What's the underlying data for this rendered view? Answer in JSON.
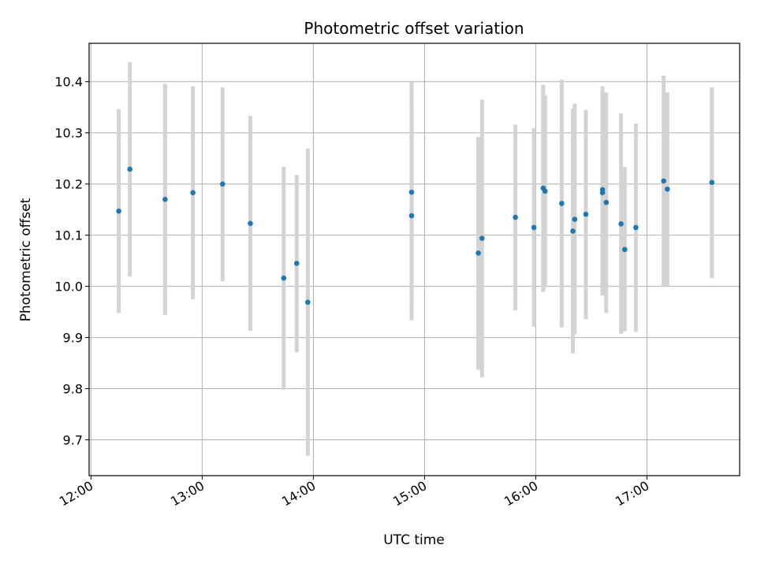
{
  "chart_data": {
    "type": "scatter",
    "title": "Photometric offset variation",
    "xlabel": "UTC time",
    "ylabel": "Photometric offset",
    "x_ticks": [
      "12:00",
      "13:00",
      "14:00",
      "15:00",
      "16:00",
      "17:00"
    ],
    "y_ticks": [
      "9.7",
      "9.8",
      "9.9",
      "10.0",
      "10.1",
      "10.2",
      "10.3",
      "10.4"
    ],
    "xlim": [
      "11:59",
      "17:50"
    ],
    "ylim": [
      9.63,
      10.475
    ],
    "grid": true,
    "colors": {
      "point": "#1f77b4",
      "errorbar": "#d3d3d3",
      "grid": "#b0b0b0"
    },
    "points": [
      {
        "x": "12:15",
        "y": 10.147,
        "low": 9.948,
        "high": 10.346
      },
      {
        "x": "12:21",
        "y": 10.229,
        "low": 10.019,
        "high": 10.438
      },
      {
        "x": "12:40",
        "y": 10.17,
        "low": 9.944,
        "high": 10.396
      },
      {
        "x": "12:55",
        "y": 10.183,
        "low": 9.975,
        "high": 10.391
      },
      {
        "x": "13:11",
        "y": 10.2,
        "low": 10.01,
        "high": 10.389
      },
      {
        "x": "13:26",
        "y": 10.123,
        "low": 9.913,
        "high": 10.333
      },
      {
        "x": "13:44",
        "y": 10.016,
        "low": 9.798,
        "high": 10.234
      },
      {
        "x": "13:51",
        "y": 10.045,
        "low": 9.871,
        "high": 10.218
      },
      {
        "x": "13:57",
        "y": 9.969,
        "low": 9.669,
        "high": 10.269
      },
      {
        "x": "14:53",
        "y": 10.184,
        "low": 9.969,
        "high": 10.399
      },
      {
        "x": "14:53",
        "y": 10.138,
        "low": 9.934,
        "high": 10.343
      },
      {
        "x": "15:29",
        "y": 10.065,
        "low": 9.837,
        "high": 10.292
      },
      {
        "x": "15:31",
        "y": 10.094,
        "low": 9.822,
        "high": 10.365
      },
      {
        "x": "15:49",
        "y": 10.135,
        "low": 9.953,
        "high": 10.316
      },
      {
        "x": "15:59",
        "y": 10.115,
        "low": 9.921,
        "high": 10.309
      },
      {
        "x": "16:04",
        "y": 10.192,
        "low": 9.989,
        "high": 10.394
      },
      {
        "x": "16:05",
        "y": 10.186,
        "low": 9.998,
        "high": 10.374
      },
      {
        "x": "16:14",
        "y": 10.162,
        "low": 9.92,
        "high": 10.404
      },
      {
        "x": "16:20",
        "y": 10.108,
        "low": 9.869,
        "high": 10.347
      },
      {
        "x": "16:21",
        "y": 10.131,
        "low": 9.906,
        "high": 10.357
      },
      {
        "x": "16:27",
        "y": 10.141,
        "low": 9.936,
        "high": 10.345
      },
      {
        "x": "16:36",
        "y": 10.189,
        "low": 9.983,
        "high": 10.391
      },
      {
        "x": "16:36",
        "y": 10.183,
        "low": 9.982,
        "high": 10.384
      },
      {
        "x": "16:38",
        "y": 10.164,
        "low": 9.948,
        "high": 10.379
      },
      {
        "x": "16:46",
        "y": 10.122,
        "low": 9.907,
        "high": 10.338
      },
      {
        "x": "16:48",
        "y": 10.072,
        "low": 9.912,
        "high": 10.233
      },
      {
        "x": "16:54",
        "y": 10.115,
        "low": 9.911,
        "high": 10.318
      },
      {
        "x": "17:09",
        "y": 10.206,
        "low": 10.0,
        "high": 10.412
      },
      {
        "x": "17:11",
        "y": 10.19,
        "low": 10.0,
        "high": 10.379
      },
      {
        "x": "17:35",
        "y": 10.203,
        "low": 10.016,
        "high": 10.389
      }
    ]
  }
}
